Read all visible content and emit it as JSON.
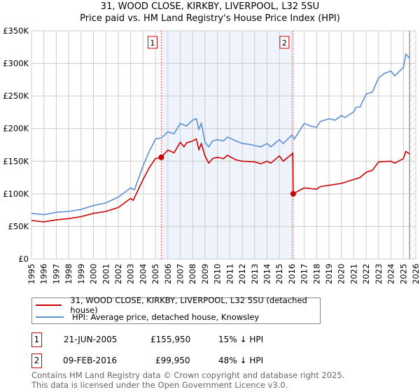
{
  "chart_data": {
    "type": "line",
    "title": "31, WOOD CLOSE, KIRKBY, LIVERPOOL, L32 5SU",
    "subtitle": "Price paid vs. HM Land Registry's House Price Index (HPI)",
    "xlim": [
      1995,
      2026
    ],
    "ylim": [
      0,
      350000
    ],
    "y_ticks": [
      0,
      50000,
      100000,
      150000,
      200000,
      250000,
      300000,
      350000
    ],
    "y_tick_labels": [
      "£0",
      "£50K",
      "£100K",
      "£150K",
      "£200K",
      "£250K",
      "£300K",
      "£350K"
    ],
    "x_ticks": [
      1995,
      1996,
      1997,
      1998,
      1999,
      2000,
      2001,
      2002,
      2003,
      2004,
      2005,
      2006,
      2007,
      2008,
      2009,
      2010,
      2011,
      2012,
      2013,
      2014,
      2015,
      2016,
      2017,
      2018,
      2019,
      2020,
      2021,
      2022,
      2023,
      2024,
      2025,
      2026
    ],
    "grid": true,
    "shaded_range": [
      2005.47,
      2016.11
    ],
    "forecast_hatch_from": 2025.5,
    "series": [
      {
        "name": "31, WOOD CLOSE, KIRKBY, LIVERPOOL, L32 5SU (detached house)",
        "color": "#cc0000",
        "x": [
          1995,
          1996,
          1997,
          1998,
          1999,
          2000,
          2001,
          2002,
          2003,
          2003.2,
          2004,
          2004.5,
          2005,
          2005.47,
          2006,
          2006.5,
          2007,
          2007.3,
          2007.5,
          2008,
          2008.3,
          2008.5,
          2008.7,
          2009,
          2009.3,
          2009.6,
          2010,
          2010.5,
          2010.8,
          2011.5,
          2012,
          2013,
          2013.5,
          2014,
          2014.3,
          2015,
          2015.3,
          2016.08,
          2016.11,
          2016.5,
          2017,
          2018,
          2018.3,
          2019,
          2020,
          2021,
          2021.5,
          2022,
          2022.5,
          2023,
          2024,
          2024.3,
          2025,
          2025.2,
          2025.5
        ],
        "y": [
          59,
          57,
          60,
          62,
          65,
          70,
          73,
          79,
          93,
          90,
          122,
          140,
          154,
          155.95,
          167,
          163,
          179,
          172,
          178,
          181,
          184,
          168,
          177,
          158,
          147,
          154,
          156,
          154,
          159,
          152,
          150,
          149,
          146,
          150,
          147,
          158,
          150,
          162,
          99.95,
          104,
          109,
          107,
          111,
          113,
          116,
          122,
          125,
          133,
          136,
          149,
          150,
          147,
          154,
          165,
          161
        ]
      },
      {
        "name": "HPI: Average price, detached house, Knowsley",
        "color": "#5b8fd4",
        "x": [
          1995,
          1996,
          1997,
          1998,
          1999,
          2000,
          2001,
          2002,
          2003,
          2003.3,
          2004,
          2004.5,
          2005,
          2005.5,
          2006,
          2006.5,
          2007,
          2007.5,
          2008,
          2008.3,
          2008.5,
          2008.7,
          2009,
          2009.3,
          2009.6,
          2010,
          2010.5,
          2010.8,
          2011.5,
          2012,
          2012.5,
          2013,
          2013.5,
          2014,
          2014.3,
          2015,
          2015.3,
          2016,
          2016.2,
          2016.5,
          2017,
          2017.5,
          2018,
          2018.3,
          2019,
          2019.5,
          2020,
          2020.3,
          2021,
          2021.2,
          2021.5,
          2022,
          2022.5,
          2023,
          2023.5,
          2024,
          2024.3,
          2025,
          2025.2,
          2025.5
        ],
        "y": [
          70,
          68,
          71.6,
          73,
          76,
          82,
          86,
          95,
          109,
          106,
          143,
          165,
          184,
          186,
          195,
          192,
          208,
          204,
          213,
          215,
          199,
          208,
          179,
          172,
          181,
          183,
          181,
          187,
          181,
          177,
          176,
          174,
          172,
          177,
          172,
          183,
          177,
          190,
          184,
          193,
          208,
          204,
          202,
          211,
          215,
          213,
          220,
          217,
          226,
          233,
          233,
          253,
          256,
          278,
          285,
          288,
          281,
          294,
          314,
          308
        ]
      }
    ],
    "y_unit_multiplier": 1000,
    "annotations": [
      {
        "label": "1",
        "x": 2005.47,
        "y": 155950
      },
      {
        "label": "2",
        "x": 2016.11,
        "y": 99950
      }
    ]
  },
  "legend": {
    "items": [
      "31, WOOD CLOSE, KIRKBY, LIVERPOOL, L32 5SU (detached house)",
      "HPI: Average price, detached house, Knowsley"
    ]
  },
  "transactions": [
    {
      "num": "1",
      "date": "21-JUN-2005",
      "price": "£155,950",
      "hpi": "15% ↓ HPI"
    },
    {
      "num": "2",
      "date": "09-FEB-2016",
      "price": "£99,950",
      "hpi": "48% ↓ HPI"
    }
  ],
  "footer": {
    "line1": "Contains HM Land Registry data © Crown copyright and database right 2025.",
    "line2": "This data is licensed under the Open Government Licence v3.0."
  }
}
